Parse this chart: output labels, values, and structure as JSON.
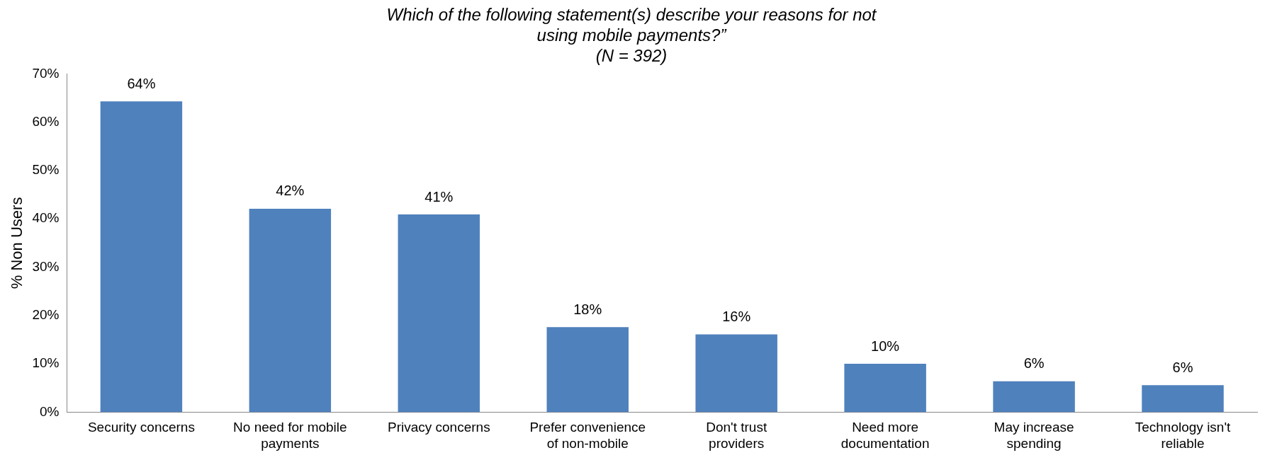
{
  "chart_data": {
    "type": "bar",
    "title": "Which of the following statement(s) describe your reasons for not using mobile payments?”",
    "subtitle": "(N = 392)",
    "ylabel": "% Non Users",
    "categories": [
      "Security concerns",
      "No need for mobile payments",
      "Privacy concerns",
      "Prefer convenience of non-mobile",
      "Don't trust providers",
      "Need more documentation",
      "May increase spending",
      "Technology isn't reliable"
    ],
    "values": [
      64.3,
      42.1,
      40.9,
      17.6,
      16.1,
      10,
      6.4,
      5.6
    ],
    "value_labels": [
      "64%",
      "42%",
      "41%",
      "18%",
      "16%",
      "10%",
      "6%",
      "6%"
    ],
    "color": "#4f81bd",
    "ylim": [
      0,
      70
    ],
    "yticks": [
      {
        "value": 0,
        "label": "0%"
      },
      {
        "value": 10,
        "label": "10%"
      },
      {
        "value": 20,
        "label": "20%"
      },
      {
        "value": 30,
        "label": "30%"
      },
      {
        "value": 40,
        "label": "40%"
      },
      {
        "value": 50,
        "label": "50%"
      },
      {
        "value": 60,
        "label": "60%"
      },
      {
        "value": 70,
        "label": "70%"
      }
    ],
    "grid": false,
    "legend": false
  }
}
